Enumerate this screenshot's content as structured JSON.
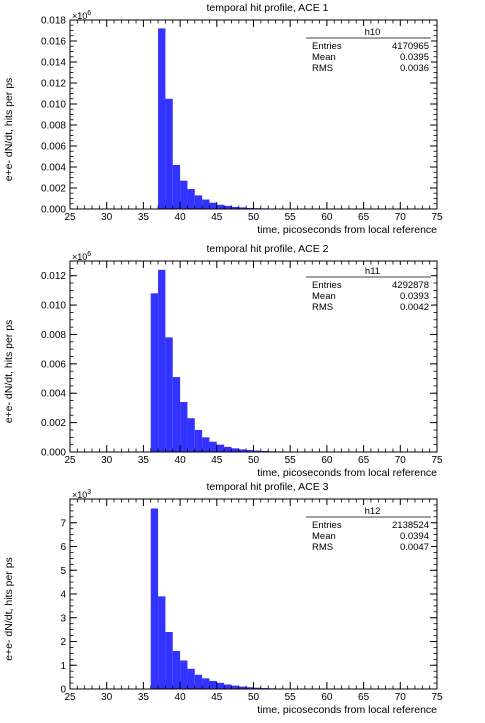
{
  "chart_data": [
    {
      "type": "bar",
      "histogram_id": "h10",
      "title": "temporal hit profile, ACE 1",
      "xlabel": "time, picoseconds from local reference",
      "ylabel": "e+e- dN/dt, hits per ps",
      "y_multiplier": "×10",
      "y_exponent": "6",
      "xlim": [
        25,
        75
      ],
      "ylim": [
        0,
        0.018
      ],
      "x_ticks": [
        "25",
        "30",
        "35",
        "40",
        "45",
        "50",
        "55",
        "60",
        "65",
        "70",
        "75"
      ],
      "y_ticks": [
        "0.000",
        "0.002",
        "0.004",
        "0.006",
        "0.008",
        "0.010",
        "0.012",
        "0.014",
        "0.016",
        "0.018"
      ],
      "bin_width": 1,
      "bin_start": 37,
      "values": [
        0.0172,
        0.0105,
        0.0042,
        0.0027,
        0.0019,
        0.0013,
        0.0009,
        0.0006,
        0.0004,
        0.0003,
        0.0002,
        0.00015,
        0.0001,
        8e-05,
        6e-05,
        5e-05,
        4e-05,
        3e-05,
        2e-05,
        2e-05,
        1.5e-05,
        1e-05,
        1e-05,
        8e-06,
        6e-06,
        5e-06,
        4e-06,
        3e-06
      ],
      "stats": {
        "title": "h10",
        "rows": [
          [
            "Entries",
            "4170965"
          ],
          [
            "Mean",
            "0.0395"
          ],
          [
            "RMS",
            "0.0036"
          ]
        ]
      },
      "grid": false,
      "bar_color": "#3333ff"
    },
    {
      "type": "bar",
      "histogram_id": "h11",
      "title": "temporal hit profile, ACE 2",
      "xlabel": "time, picoseconds from local reference",
      "ylabel": "e+e- dN/dt, hits per ps",
      "y_multiplier": "×10",
      "y_exponent": "6",
      "xlim": [
        25,
        75
      ],
      "ylim": [
        0,
        0.013
      ],
      "x_ticks": [
        "25",
        "30",
        "35",
        "40",
        "45",
        "50",
        "55",
        "60",
        "65",
        "70",
        "75"
      ],
      "y_ticks": [
        "0.000",
        "0.002",
        "0.004",
        "0.006",
        "0.008",
        "0.010",
        "0.012"
      ],
      "bin_width": 1,
      "bin_start": 36,
      "values": [
        0.0108,
        0.0124,
        0.0078,
        0.0051,
        0.0034,
        0.0023,
        0.0015,
        0.001,
        0.0007,
        0.0005,
        0.00035,
        0.00025,
        0.00018,
        0.00013,
        0.0001,
        7e-05,
        5e-05,
        4e-05,
        3e-05,
        2e-05,
        1.5e-05,
        1e-05,
        8e-06,
        6e-06,
        5e-06,
        4e-06,
        3e-06,
        2e-06
      ],
      "stats": {
        "title": "h11",
        "rows": [
          [
            "Entries",
            "4292878"
          ],
          [
            "Mean",
            "0.0393"
          ],
          [
            "RMS",
            "0.0042"
          ]
        ]
      },
      "grid": false,
      "bar_color": "#3333ff"
    },
    {
      "type": "bar",
      "histogram_id": "h12",
      "title": "temporal hit profile, ACE 3",
      "xlabel": "time, picoseconds from local reference",
      "ylabel": "e+e- dN/dt, hits per ps",
      "y_multiplier": "×10",
      "y_exponent": "3",
      "xlim": [
        25,
        75
      ],
      "ylim": [
        0,
        8
      ],
      "x_ticks": [
        "25",
        "30",
        "35",
        "40",
        "45",
        "50",
        "55",
        "60",
        "65",
        "70",
        "75"
      ],
      "y_ticks": [
        "0",
        "1",
        "2",
        "3",
        "4",
        "5",
        "6",
        "7"
      ],
      "bin_width": 1,
      "bin_start": 36,
      "values": [
        7.6,
        3.9,
        2.4,
        1.6,
        1.2,
        0.85,
        0.6,
        0.45,
        0.34,
        0.26,
        0.19,
        0.14,
        0.1,
        0.075,
        0.055,
        0.04,
        0.03,
        0.022,
        0.016,
        0.012,
        0.009,
        0.007,
        0.005,
        0.004,
        0.003,
        0.002,
        0.0015,
        0.001
      ],
      "stats": {
        "title": "h12",
        "rows": [
          [
            "Entries",
            "2138524"
          ],
          [
            "Mean",
            "0.0394"
          ],
          [
            "RMS",
            "0.0047"
          ]
        ]
      },
      "grid": false,
      "bar_color": "#3333ff"
    }
  ]
}
